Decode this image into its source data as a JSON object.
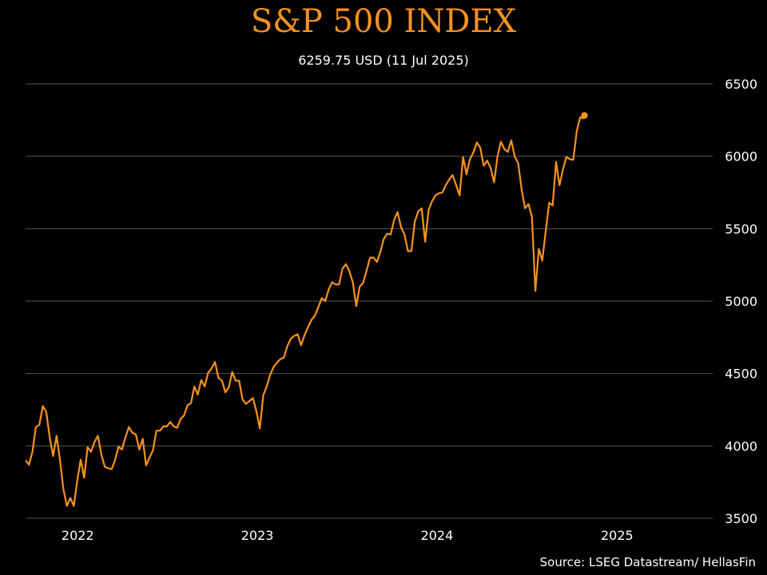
{
  "title": "S&P 500 INDEX",
  "subtitle": "6259.75 USD (11 Jul 2025)",
  "source": "Source: LSEG Datastream/ HellasFin",
  "colors": {
    "line": "#f7931e",
    "grid": "#555555",
    "background": "#000000",
    "text": "#ffffff"
  },
  "chart_data": {
    "type": "line",
    "title": "S&P 500 INDEX",
    "subtitle": "6259.75 USD (11 Jul 2025)",
    "ylim": [
      3500,
      6500
    ],
    "yticks": [
      3500,
      4000,
      4500,
      5000,
      5500,
      6000,
      6500
    ],
    "xlim": [
      "2021-09-17",
      "2025-07-11"
    ],
    "xticks": [
      {
        "label": "2022",
        "date": "2022-01-01"
      },
      {
        "label": "2023",
        "date": "2023-01-01"
      },
      {
        "label": "2024",
        "date": "2024-01-01"
      },
      {
        "label": "2025",
        "date": "2025-01-01"
      }
    ],
    "grid": true,
    "y_axis_position": "right",
    "end_marker": true,
    "series": [
      {
        "points": [
          [
            "2021-09-17",
            3900
          ],
          [
            "2021-09-24",
            3870
          ],
          [
            "2021-10-01",
            3960
          ],
          [
            "2021-10-08",
            4130
          ],
          [
            "2021-10-15",
            4145
          ],
          [
            "2021-10-22",
            4275
          ],
          [
            "2021-10-29",
            4235
          ],
          [
            "2021-11-05",
            4060
          ],
          [
            "2021-11-12",
            3930
          ],
          [
            "2021-11-19",
            4070
          ],
          [
            "2021-11-26",
            3900
          ],
          [
            "2021-12-03",
            3700
          ],
          [
            "2021-12-10",
            3585
          ],
          [
            "2021-12-17",
            3640
          ],
          [
            "2021-12-24",
            3585
          ],
          [
            "2021-12-31",
            3760
          ],
          [
            "2022-01-07",
            3905
          ],
          [
            "2022-01-14",
            3780
          ],
          [
            "2022-01-21",
            3990
          ],
          [
            "2022-01-28",
            3960
          ],
          [
            "2022-02-04",
            4025
          ],
          [
            "2022-02-11",
            4070
          ],
          [
            "2022-02-18",
            3940
          ],
          [
            "2022-02-25",
            3855
          ],
          [
            "2022-03-04",
            3845
          ],
          [
            "2022-03-11",
            3840
          ],
          [
            "2022-03-18",
            3905
          ],
          [
            "2022-03-25",
            3995
          ],
          [
            "2022-04-01",
            3975
          ],
          [
            "2022-04-08",
            4060
          ],
          [
            "2022-04-15",
            4130
          ],
          [
            "2022-04-22",
            4090
          ],
          [
            "2022-04-29",
            4080
          ],
          [
            "2022-05-06",
            3975
          ],
          [
            "2022-05-13",
            4050
          ],
          [
            "2022-05-20",
            3865
          ],
          [
            "2022-05-27",
            3920
          ],
          [
            "2022-06-03",
            3970
          ],
          [
            "2022-06-10",
            4105
          ],
          [
            "2022-06-17",
            4105
          ],
          [
            "2022-06-24",
            4135
          ],
          [
            "2022-07-01",
            4135
          ],
          [
            "2022-07-08",
            4165
          ],
          [
            "2022-07-15",
            4135
          ],
          [
            "2022-07-22",
            4125
          ],
          [
            "2022-07-29",
            4185
          ],
          [
            "2022-08-05",
            4210
          ],
          [
            "2022-08-12",
            4280
          ],
          [
            "2022-08-19",
            4295
          ],
          [
            "2022-08-26",
            4410
          ],
          [
            "2022-09-02",
            4355
          ],
          [
            "2022-09-09",
            4455
          ],
          [
            "2022-09-16",
            4410
          ],
          [
            "2022-09-23",
            4505
          ],
          [
            "2022-09-30",
            4535
          ],
          [
            "2022-10-07",
            4580
          ],
          [
            "2022-10-14",
            4470
          ],
          [
            "2022-10-21",
            4450
          ],
          [
            "2022-10-28",
            4370
          ],
          [
            "2022-11-04",
            4405
          ],
          [
            "2022-11-11",
            4510
          ],
          [
            "2022-11-18",
            4450
          ],
          [
            "2022-11-25",
            4450
          ],
          [
            "2022-12-02",
            4320
          ],
          [
            "2022-12-09",
            4290
          ],
          [
            "2022-12-16",
            4310
          ],
          [
            "2022-12-23",
            4330
          ],
          [
            "2022-12-30",
            4240
          ],
          [
            "2023-01-06",
            4120
          ],
          [
            "2023-01-13",
            4350
          ],
          [
            "2023-01-20",
            4410
          ],
          [
            "2023-01-27",
            4490
          ],
          [
            "2023-02-03",
            4545
          ],
          [
            "2023-02-10",
            4575
          ],
          [
            "2023-02-17",
            4600
          ],
          [
            "2023-02-24",
            4610
          ],
          [
            "2023-03-03",
            4690
          ],
          [
            "2023-03-10",
            4740
          ],
          [
            "2023-03-17",
            4760
          ],
          [
            "2023-03-24",
            4770
          ],
          [
            "2023-03-31",
            4695
          ],
          [
            "2023-04-07",
            4765
          ],
          [
            "2023-04-14",
            4820
          ],
          [
            "2023-04-21",
            4870
          ],
          [
            "2023-04-28",
            4900
          ],
          [
            "2023-05-05",
            4960
          ],
          [
            "2023-05-12",
            5020
          ],
          [
            "2023-05-19",
            5000
          ],
          [
            "2023-05-26",
            5080
          ],
          [
            "2023-06-02",
            5130
          ],
          [
            "2023-06-09",
            5115
          ],
          [
            "2023-06-16",
            5115
          ],
          [
            "2023-06-23",
            5225
          ],
          [
            "2023-06-30",
            5255
          ],
          [
            "2023-07-07",
            5205
          ],
          [
            "2023-07-14",
            5130
          ],
          [
            "2023-07-21",
            4965
          ],
          [
            "2023-07-28",
            5100
          ],
          [
            "2023-08-04",
            5125
          ],
          [
            "2023-08-11",
            5210
          ],
          [
            "2023-08-18",
            5300
          ],
          [
            "2023-08-25",
            5300
          ],
          [
            "2023-09-01",
            5270
          ],
          [
            "2023-09-08",
            5340
          ],
          [
            "2023-09-15",
            5430
          ],
          [
            "2023-09-22",
            5465
          ],
          [
            "2023-09-29",
            5460
          ],
          [
            "2023-10-06",
            5560
          ],
          [
            "2023-10-13",
            5615
          ],
          [
            "2023-10-20",
            5510
          ],
          [
            "2023-10-27",
            5460
          ],
          [
            "2023-11-03",
            5345
          ],
          [
            "2023-11-10",
            5345
          ],
          [
            "2023-11-17",
            5550
          ],
          [
            "2023-11-24",
            5620
          ],
          [
            "2023-12-01",
            5640
          ],
          [
            "2023-12-08",
            5410
          ],
          [
            "2023-12-15",
            5630
          ],
          [
            "2023-12-22",
            5690
          ],
          [
            "2023-12-29",
            5730
          ],
          [
            "2024-01-05",
            5745
          ],
          [
            "2024-01-12",
            5750
          ],
          [
            "2024-01-19",
            5800
          ],
          [
            "2024-01-26",
            5840
          ],
          [
            "2024-02-02",
            5870
          ],
          [
            "2024-02-09",
            5800
          ],
          [
            "2024-02-16",
            5730
          ],
          [
            "2024-02-23",
            5995
          ],
          [
            "2024-03-01",
            5875
          ],
          [
            "2024-03-08",
            5980
          ],
          [
            "2024-03-15",
            6025
          ],
          [
            "2024-03-22",
            6095
          ],
          [
            "2024-03-29",
            6060
          ],
          [
            "2024-04-05",
            5935
          ],
          [
            "2024-04-12",
            5970
          ],
          [
            "2024-04-19",
            5920
          ],
          [
            "2024-04-26",
            5820
          ],
          [
            "2024-05-03",
            6000
          ],
          [
            "2024-05-10",
            6100
          ],
          [
            "2024-05-17",
            6050
          ],
          [
            "2024-05-24",
            6030
          ],
          [
            "2024-05-31",
            6110
          ],
          [
            "2024-06-07",
            6000
          ],
          [
            "2024-06-14",
            5950
          ],
          [
            "2024-06-21",
            5770
          ],
          [
            "2024-06-28",
            5640
          ],
          [
            "2024-07-05",
            5670
          ],
          [
            "2024-07-12",
            5580
          ],
          [
            "2024-07-19",
            5070
          ],
          [
            "2024-07-26",
            5360
          ],
          [
            "2024-08-02",
            5280
          ],
          [
            "2024-08-09",
            5480
          ],
          [
            "2024-08-16",
            5680
          ],
          [
            "2024-08-23",
            5660
          ],
          [
            "2024-08-30",
            5960
          ],
          [
            "2024-09-06",
            5800
          ],
          [
            "2024-09-13",
            5910
          ],
          [
            "2024-09-20",
            5995
          ],
          [
            "2024-09-27",
            5980
          ],
          [
            "2024-10-04",
            5975
          ],
          [
            "2024-10-11",
            6170
          ],
          [
            "2024-10-18",
            6270
          ],
          [
            "2024-10-25",
            6259.75
          ]
        ]
      }
    ]
  }
}
